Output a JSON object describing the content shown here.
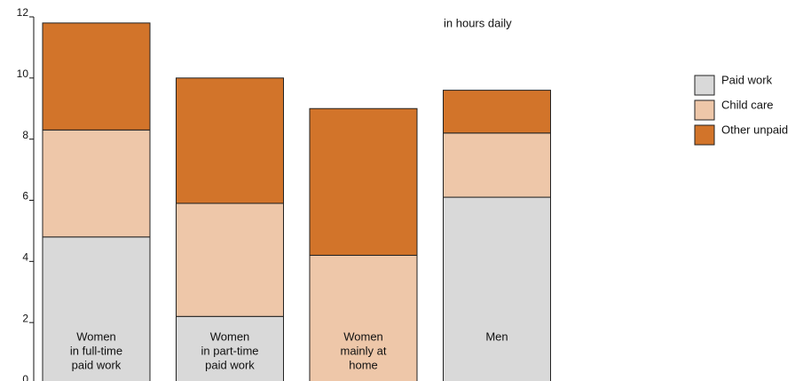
{
  "chart_data": {
    "type": "stacked_bar",
    "annotation": "in hours daily",
    "categories": [
      [
        "Women",
        "in full-time",
        "paid work"
      ],
      [
        "Women",
        "in part-time",
        "paid work"
      ],
      [
        "Women",
        "mainly at",
        "home"
      ],
      [
        "Men"
      ]
    ],
    "series": [
      {
        "name": "Paid work",
        "color": "#d9d9d9",
        "values": [
          4.8,
          2.2,
          0,
          6.1
        ]
      },
      {
        "name": "Child care",
        "color": "#eec7a9",
        "values": [
          3.5,
          3.7,
          4.2,
          2.1
        ]
      },
      {
        "name": "Other unpaid",
        "color": "#d2742a",
        "values": [
          3.5,
          4.1,
          4.8,
          1.4
        ]
      }
    ],
    "ylim": [
      0,
      12
    ],
    "yticks": [
      0,
      2,
      4,
      6,
      8,
      10,
      12
    ],
    "legend": "right"
  }
}
